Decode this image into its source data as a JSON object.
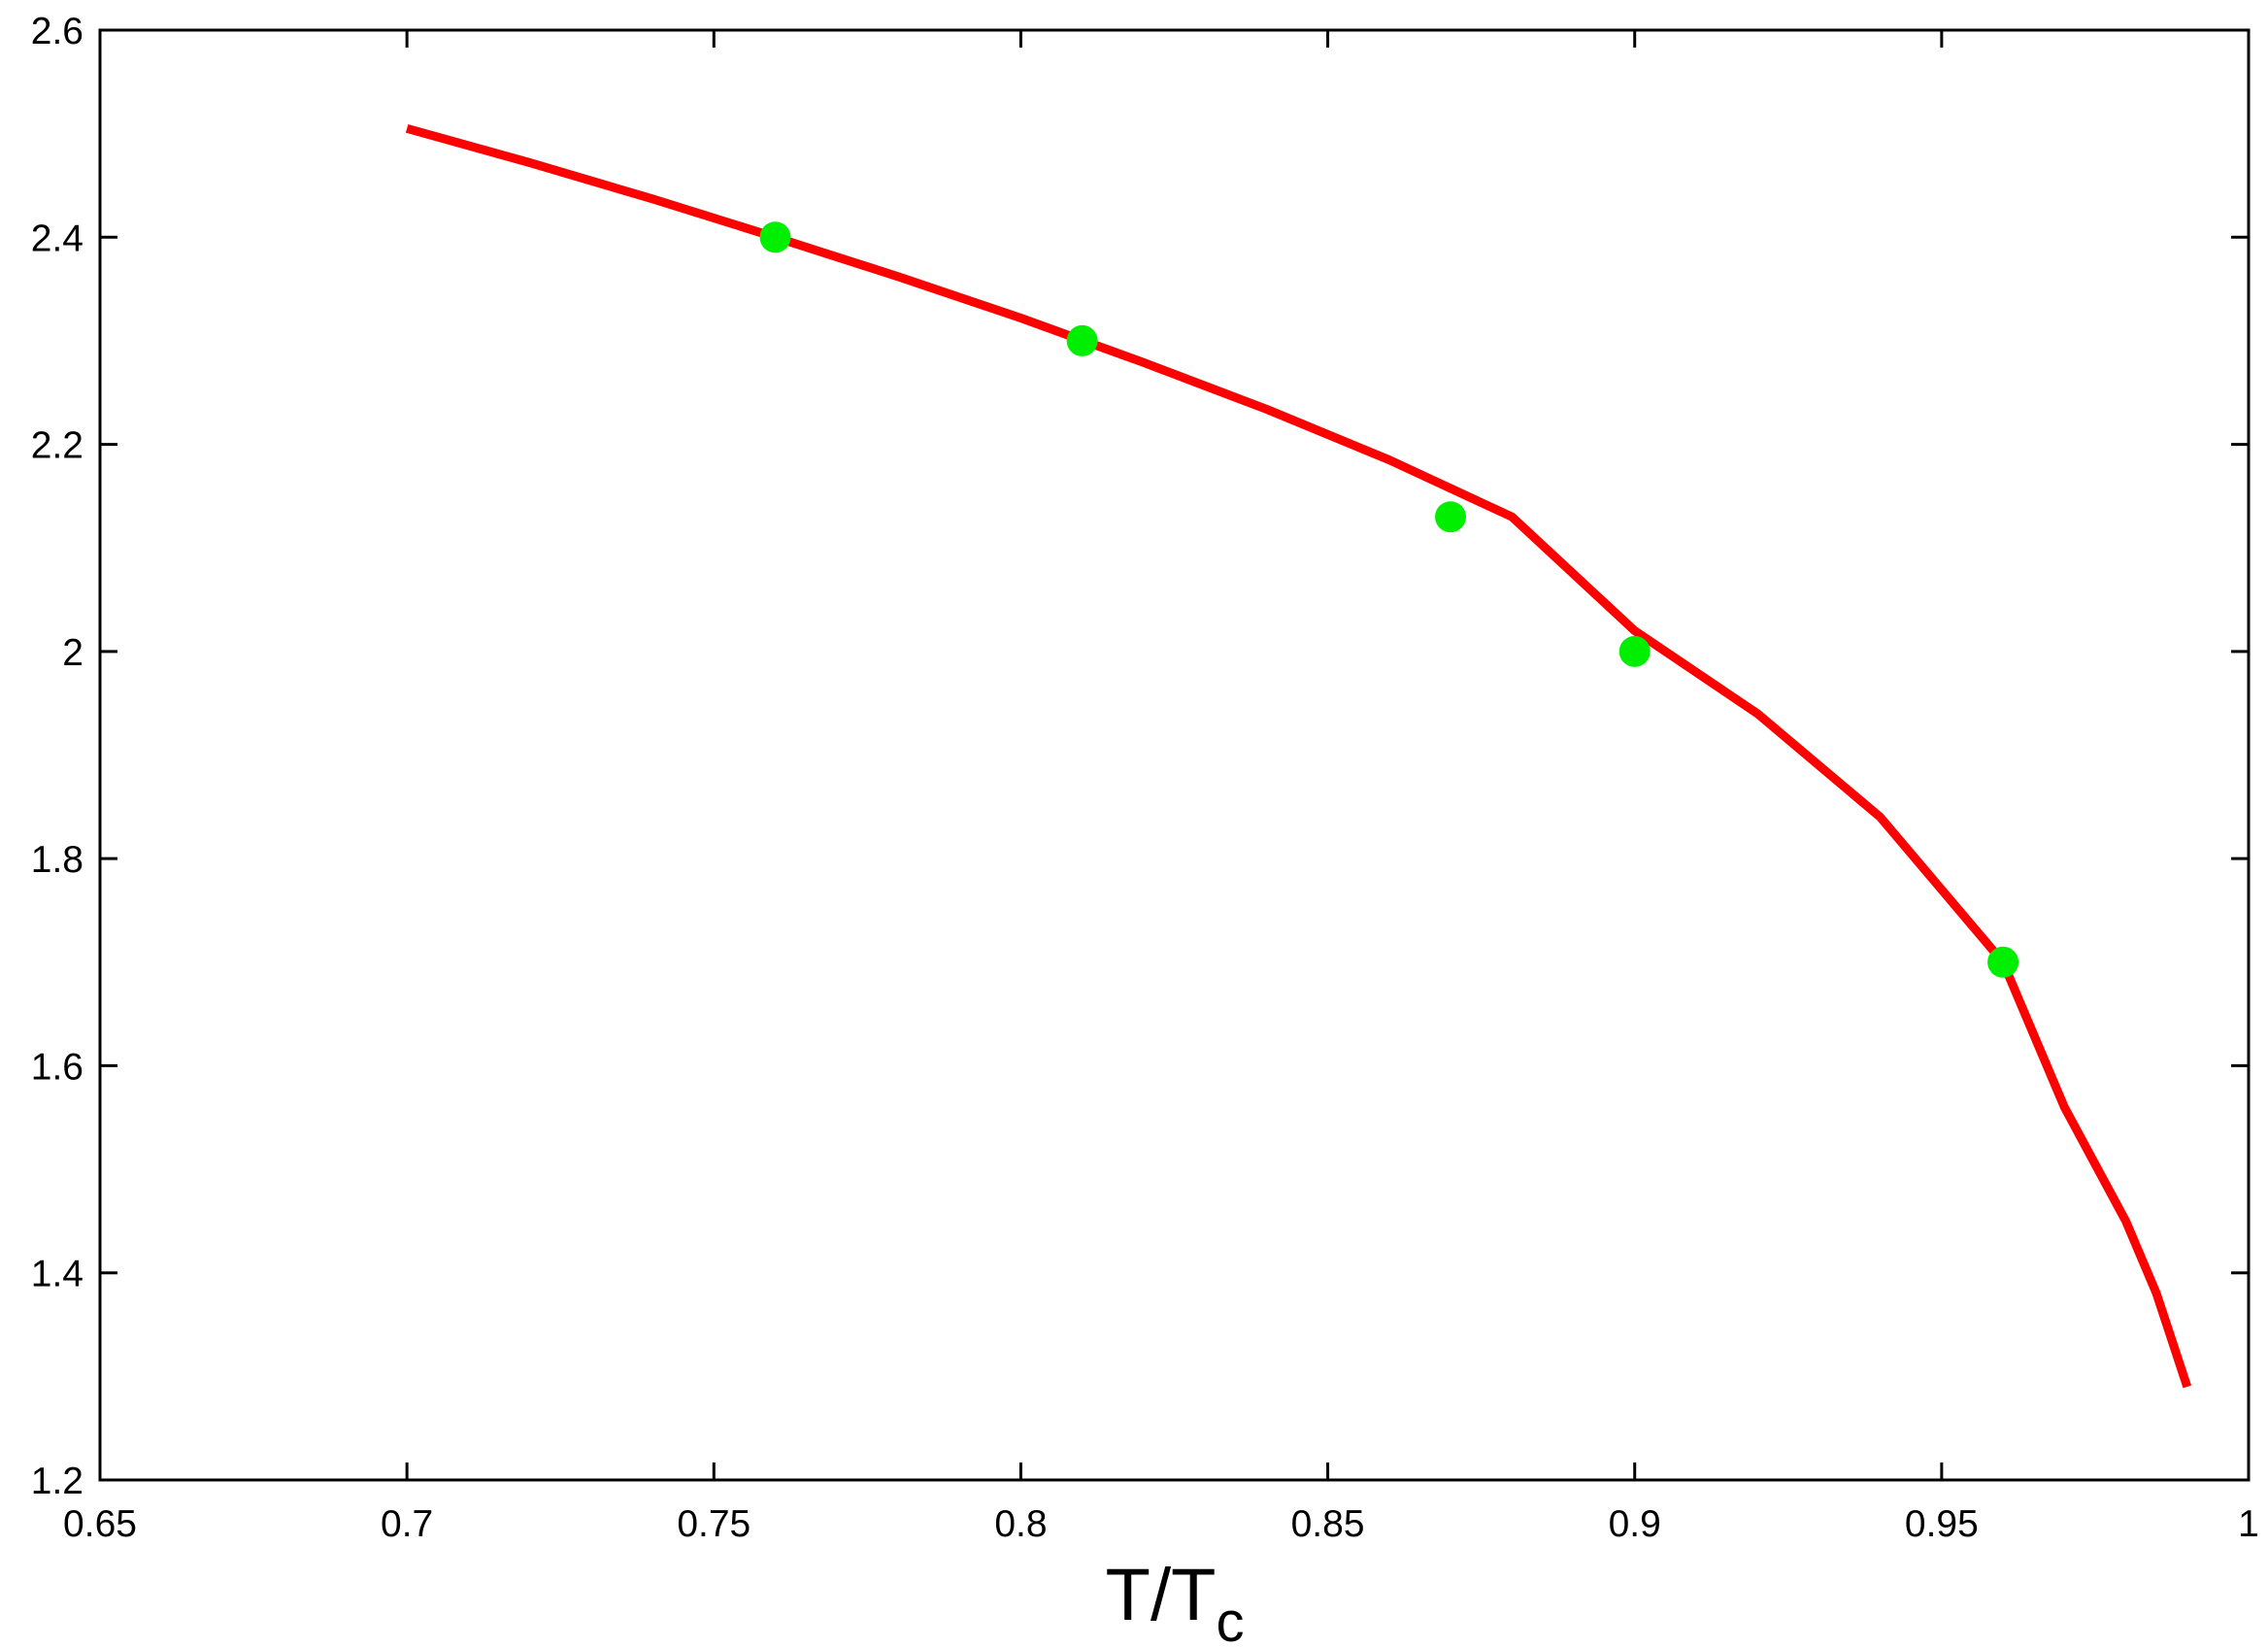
{
  "chart_data": {
    "type": "line",
    "xlabel": [
      "T/T",
      "c"
    ],
    "xlim": [
      0.65,
      1
    ],
    "xticks": [
      0.65,
      0.7,
      0.75,
      0.8,
      0.85,
      0.9,
      0.95,
      1
    ],
    "ylim": [
      1.2,
      2.6
    ],
    "yticks": [
      1.2,
      1.4,
      1.6,
      1.8,
      2,
      2.2,
      2.4,
      2.6
    ],
    "series": [
      {
        "color": "#ff0000",
        "x": [
          0.7,
          0.72,
          0.74,
          0.76,
          0.78,
          0.8,
          0.82,
          0.84,
          0.86,
          0.88,
          0.9,
          0.92,
          0.94,
          0.95,
          0.96,
          0.97,
          0.98,
          0.985,
          0.99
        ],
        "values": [
          2.505,
          2.472,
          2.437,
          2.4,
          2.362,
          2.322,
          2.279,
          2.234,
          2.185,
          2.13,
          2.02,
          1.94,
          1.84,
          1.77,
          1.7,
          1.56,
          1.45,
          1.38,
          1.29
        ]
      },
      {
        "type": "scatter",
        "color": "#00ee00",
        "x": [
          0.76,
          0.81,
          0.87,
          0.9,
          0.96
        ],
        "values": [
          2.4,
          2.3,
          2.13,
          2.0,
          1.7
        ]
      }
    ]
  }
}
